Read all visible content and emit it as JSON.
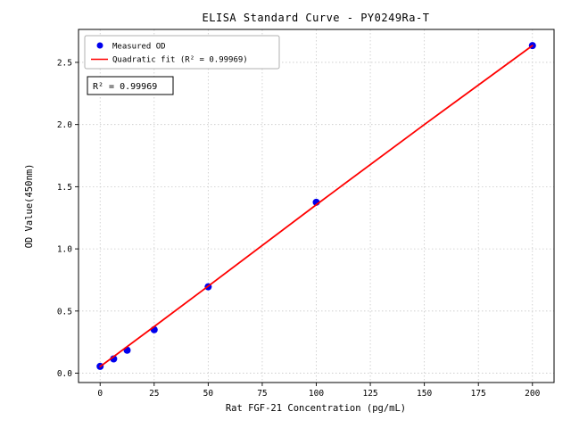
{
  "chart_data": {
    "type": "scatter",
    "title": "ELISA Standard Curve - PY0249Ra-T",
    "xlabel": "Rat FGF-21 Concentration (pg/mL)",
    "ylabel": "OD Value(450nm)",
    "xlim": [
      -10,
      210
    ],
    "ylim": [
      -0.075,
      2.765
    ],
    "xticks": [
      0,
      25,
      50,
      75,
      100,
      125,
      150,
      175,
      200
    ],
    "xtick_labels": [
      "0",
      "25",
      "50",
      "75",
      "100",
      "125",
      "150",
      "175",
      "200"
    ],
    "yticks": [
      0.0,
      0.5,
      1.0,
      1.5,
      2.0,
      2.5
    ],
    "ytick_labels": [
      "0.0",
      "0.5",
      "1.0",
      "1.5",
      "2.0",
      "2.5"
    ],
    "grid": true,
    "legend_position": "upper left",
    "annotation": "R² = 0.99969",
    "colors": {
      "scatter": "#0000ee",
      "fit_line": "#ff0000",
      "grid": "#c8c8c8",
      "legend_border": "#b0b0b0"
    },
    "series": [
      {
        "name": "Measured OD",
        "type": "scatter",
        "color": "#0000ee",
        "x": [
          0,
          6.25,
          12.5,
          25,
          50,
          100,
          200
        ],
        "y": [
          0.055,
          0.115,
          0.185,
          0.35,
          0.695,
          1.375,
          2.635
        ]
      },
      {
        "name": "Quadratic fit (R² = 0.99969)",
        "type": "line",
        "color": "#ff0000",
        "x": [
          0,
          25,
          50,
          100,
          150,
          200
        ],
        "y": [
          0.053,
          0.375,
          0.7,
          1.355,
          2.0,
          2.635
        ]
      }
    ]
  }
}
